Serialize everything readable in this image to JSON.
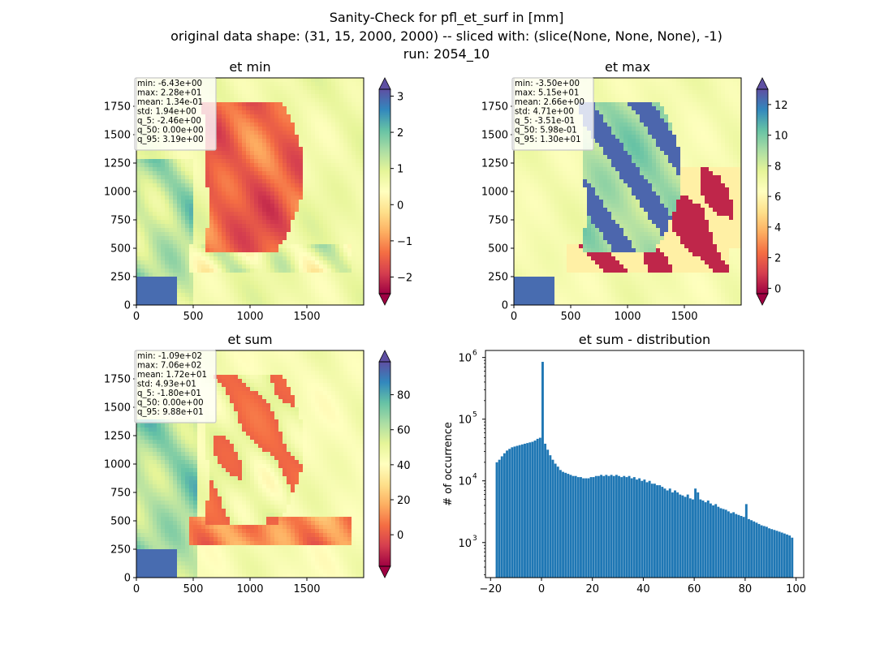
{
  "figure": {
    "suptitle_lines": [
      "Sanity-Check for pfl_et_surf in [mm]",
      "original data shape: (31, 15, 2000, 2000) -- sliced with: (slice(None, None, None), -1)",
      "run: 2054_10"
    ]
  },
  "colors": {
    "bar": "#1f77b4",
    "axis": "#000000",
    "legend_box_border": "#c8c8c8",
    "spectral": [
      "#9e0142",
      "#d53e4f",
      "#f46d43",
      "#fdae61",
      "#fee08b",
      "#ffffbf",
      "#e6f598",
      "#abdda4",
      "#66c2a5",
      "#3288bd",
      "#5e4fa2"
    ]
  },
  "chart_data": [
    {
      "type": "heatmap",
      "title": "et min",
      "colormap": "Spectral",
      "xlim": [
        0,
        2000
      ],
      "ylim": [
        0,
        2000
      ],
      "xticks": [
        0,
        500,
        1000,
        1500
      ],
      "yticks": [
        0,
        250,
        500,
        750,
        1000,
        1250,
        1500,
        1750
      ],
      "colorbar": {
        "min": -2.46,
        "max": 3.19,
        "ticks": [
          "3",
          "2",
          "1",
          "0",
          "−1",
          "−2"
        ],
        "tick_values": [
          3,
          2,
          1,
          0,
          -1,
          -2
        ],
        "extend": "both"
      },
      "stats": [
        "min: -6.43e+00",
        "max: 2.28e+01",
        "mean: 1.34e-01",
        "std: 1.94e+00",
        "q_5: -2.46e+00",
        "q_50: 0.00e+00",
        "q_95: 3.19e+00"
      ]
    },
    {
      "type": "heatmap",
      "title": "et max",
      "colormap": "Spectral",
      "xlim": [
        0,
        2000
      ],
      "ylim": [
        0,
        2000
      ],
      "xticks": [
        0,
        500,
        1000,
        1500
      ],
      "yticks": [
        0,
        250,
        500,
        750,
        1000,
        1250,
        1500,
        1750
      ],
      "colorbar": {
        "min": -0.351,
        "max": 13.0,
        "ticks": [
          "12",
          "10",
          "8",
          "6",
          "4",
          "2",
          "0"
        ],
        "tick_values": [
          12,
          10,
          8,
          6,
          4,
          2,
          0
        ],
        "extend": "both"
      },
      "stats": [
        "min: -3.50e+00",
        "max: 5.15e+01",
        "mean: 2.66e+00",
        "std: 4.71e+00",
        "q_5: -3.51e-01",
        "q_50: 5.98e-01",
        "q_95: 1.30e+01"
      ]
    },
    {
      "type": "heatmap",
      "title": "et sum",
      "colormap": "Spectral",
      "xlim": [
        0,
        2000
      ],
      "ylim": [
        0,
        2000
      ],
      "xticks": [
        0,
        500,
        1000,
        1500
      ],
      "yticks": [
        0,
        250,
        500,
        750,
        1000,
        1250,
        1500,
        1750
      ],
      "colorbar": {
        "min": -18.0,
        "max": 98.8,
        "ticks": [
          "80",
          "60",
          "40",
          "20",
          "0"
        ],
        "tick_values": [
          80,
          60,
          40,
          20,
          0
        ],
        "extend": "both"
      },
      "stats": [
        "min: -1.09e+02",
        "max: 7.06e+02",
        "mean: 1.72e+01",
        "std: 4.93e+01",
        "q_5: -1.80e+01",
        "q_50: 0.00e+00",
        "q_95: 9.88e+01"
      ]
    },
    {
      "type": "bar",
      "title": "et sum - distribution",
      "xlabel": "",
      "ylabel": "# of occurrence",
      "yscale": "log",
      "xlim": [
        -22,
        103
      ],
      "ylim": [
        270,
        1300000
      ],
      "xticks": [
        "−20",
        "0",
        "20",
        "40",
        "60",
        "80",
        "100"
      ],
      "xtick_values": [
        -20,
        0,
        20,
        40,
        60,
        80,
        100
      ],
      "yticks": [
        "10",
        "10",
        "10",
        "10"
      ],
      "ytick_exponents": [
        "3",
        "4",
        "5",
        "6"
      ],
      "ytick_values": [
        1000,
        10000,
        100000,
        1000000
      ],
      "bins": [
        {
          "x": -18,
          "count": 20000
        },
        {
          "x": -17,
          "count": 22000
        },
        {
          "x": -16,
          "count": 25000
        },
        {
          "x": -15,
          "count": 28000
        },
        {
          "x": -14,
          "count": 31000
        },
        {
          "x": -13,
          "count": 33000
        },
        {
          "x": -12,
          "count": 35000
        },
        {
          "x": -11,
          "count": 36000
        },
        {
          "x": -10,
          "count": 37000
        },
        {
          "x": -9,
          "count": 38000
        },
        {
          "x": -8,
          "count": 39000
        },
        {
          "x": -7,
          "count": 40000
        },
        {
          "x": -6,
          "count": 41000
        },
        {
          "x": -5,
          "count": 42000
        },
        {
          "x": -4,
          "count": 43000
        },
        {
          "x": -3,
          "count": 45000
        },
        {
          "x": -2,
          "count": 48000
        },
        {
          "x": -1,
          "count": 50000
        },
        {
          "x": 0,
          "count": 850000
        },
        {
          "x": 1,
          "count": 40000
        },
        {
          "x": 2,
          "count": 32000
        },
        {
          "x": 3,
          "count": 26000
        },
        {
          "x": 4,
          "count": 22000
        },
        {
          "x": 5,
          "count": 19000
        },
        {
          "x": 6,
          "count": 17000
        },
        {
          "x": 7,
          "count": 15000
        },
        {
          "x": 8,
          "count": 14000
        },
        {
          "x": 9,
          "count": 13500
        },
        {
          "x": 10,
          "count": 13000
        },
        {
          "x": 11,
          "count": 12500
        },
        {
          "x": 12,
          "count": 12000
        },
        {
          "x": 13,
          "count": 12000
        },
        {
          "x": 14,
          "count": 11500
        },
        {
          "x": 15,
          "count": 11500
        },
        {
          "x": 16,
          "count": 11000
        },
        {
          "x": 17,
          "count": 11000
        },
        {
          "x": 18,
          "count": 11000
        },
        {
          "x": 19,
          "count": 11500
        },
        {
          "x": 20,
          "count": 11500
        },
        {
          "x": 21,
          "count": 12000
        },
        {
          "x": 22,
          "count": 12000
        },
        {
          "x": 23,
          "count": 12500
        },
        {
          "x": 24,
          "count": 12000
        },
        {
          "x": 25,
          "count": 12500
        },
        {
          "x": 26,
          "count": 12000
        },
        {
          "x": 27,
          "count": 12500
        },
        {
          "x": 28,
          "count": 12000
        },
        {
          "x": 29,
          "count": 12500
        },
        {
          "x": 30,
          "count": 12000
        },
        {
          "x": 31,
          "count": 11500
        },
        {
          "x": 32,
          "count": 12000
        },
        {
          "x": 33,
          "count": 11500
        },
        {
          "x": 34,
          "count": 12000
        },
        {
          "x": 35,
          "count": 11000
        },
        {
          "x": 36,
          "count": 11500
        },
        {
          "x": 37,
          "count": 10500
        },
        {
          "x": 38,
          "count": 11000
        },
        {
          "x": 39,
          "count": 10000
        },
        {
          "x": 40,
          "count": 10500
        },
        {
          "x": 41,
          "count": 9500
        },
        {
          "x": 42,
          "count": 10000
        },
        {
          "x": 43,
          "count": 9000
        },
        {
          "x": 44,
          "count": 9000
        },
        {
          "x": 45,
          "count": 8500
        },
        {
          "x": 46,
          "count": 8500
        },
        {
          "x": 47,
          "count": 8000
        },
        {
          "x": 48,
          "count": 7500
        },
        {
          "x": 49,
          "count": 7000
        },
        {
          "x": 50,
          "count": 7500
        },
        {
          "x": 51,
          "count": 6500
        },
        {
          "x": 52,
          "count": 7000
        },
        {
          "x": 53,
          "count": 6500
        },
        {
          "x": 54,
          "count": 6000
        },
        {
          "x": 55,
          "count": 5800
        },
        {
          "x": 56,
          "count": 5500
        },
        {
          "x": 57,
          "count": 6000
        },
        {
          "x": 58,
          "count": 5200
        },
        {
          "x": 59,
          "count": 5000
        },
        {
          "x": 60,
          "count": 7500
        },
        {
          "x": 61,
          "count": 6500
        },
        {
          "x": 62,
          "count": 5000
        },
        {
          "x": 63,
          "count": 4800
        },
        {
          "x": 64,
          "count": 4500
        },
        {
          "x": 65,
          "count": 4800
        },
        {
          "x": 66,
          "count": 4300
        },
        {
          "x": 67,
          "count": 4000
        },
        {
          "x": 68,
          "count": 4200
        },
        {
          "x": 69,
          "count": 3800
        },
        {
          "x": 70,
          "count": 3600
        },
        {
          "x": 71,
          "count": 3500
        },
        {
          "x": 72,
          "count": 3400
        },
        {
          "x": 73,
          "count": 3200
        },
        {
          "x": 74,
          "count": 3000
        },
        {
          "x": 75,
          "count": 3100
        },
        {
          "x": 76,
          "count": 2900
        },
        {
          "x": 77,
          "count": 2800
        },
        {
          "x": 78,
          "count": 2700
        },
        {
          "x": 79,
          "count": 2600
        },
        {
          "x": 80,
          "count": 4200
        },
        {
          "x": 81,
          "count": 2400
        },
        {
          "x": 82,
          "count": 2300
        },
        {
          "x": 83,
          "count": 2200
        },
        {
          "x": 84,
          "count": 2100
        },
        {
          "x": 85,
          "count": 2000
        },
        {
          "x": 86,
          "count": 1900
        },
        {
          "x": 87,
          "count": 1850
        },
        {
          "x": 88,
          "count": 1800
        },
        {
          "x": 89,
          "count": 1700
        },
        {
          "x": 90,
          "count": 1650
        },
        {
          "x": 91,
          "count": 1600
        },
        {
          "x": 92,
          "count": 1550
        },
        {
          "x": 93,
          "count": 1500
        },
        {
          "x": 94,
          "count": 1450
        },
        {
          "x": 95,
          "count": 1400
        },
        {
          "x": 96,
          "count": 1350
        },
        {
          "x": 97,
          "count": 1300
        },
        {
          "x": 98,
          "count": 1200
        }
      ]
    }
  ]
}
